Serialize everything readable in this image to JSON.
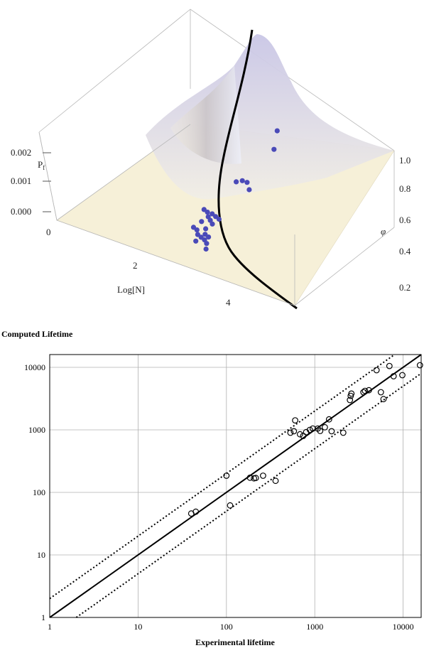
{
  "chart_data": [
    {
      "type": "surface3d",
      "zlabel": "P_f",
      "xlabel": "Log[N]",
      "ylabel": "φ",
      "z_ticks": [
        "0.002",
        "0.001",
        "0.000"
      ],
      "x_ticks": [
        "0",
        "2",
        "4"
      ],
      "y_ticks": [
        "0.2",
        "0.4",
        "0.6",
        "0.8",
        "1.0"
      ],
      "surface_color": "#f6f0d8",
      "curve_color": "#000000",
      "point_color": "#4a4ab8",
      "points": [
        {
          "logN": 3.3,
          "phi": 0.98
        },
        {
          "logN": 3.4,
          "phi": 0.92
        },
        {
          "logN": 3.1,
          "phi": 0.79
        },
        {
          "logN": 3.2,
          "phi": 0.79
        },
        {
          "logN": 3.0,
          "phi": 0.78
        },
        {
          "logN": 3.3,
          "phi": 0.77
        },
        {
          "logN": 2.8,
          "phi": 0.61
        },
        {
          "logN": 2.9,
          "phi": 0.6
        },
        {
          "logN": 3.0,
          "phi": 0.6
        },
        {
          "logN": 3.1,
          "phi": 0.59
        },
        {
          "logN": 3.2,
          "phi": 0.58
        },
        {
          "logN": 3.0,
          "phi": 0.57
        },
        {
          "logN": 3.1,
          "phi": 0.55
        },
        {
          "logN": 3.2,
          "phi": 0.53
        },
        {
          "logN": 3.0,
          "phi": 0.52
        },
        {
          "logN": 3.2,
          "phi": 0.48
        },
        {
          "logN": 3.0,
          "phi": 0.46
        },
        {
          "logN": 3.1,
          "phi": 0.45
        },
        {
          "logN": 3.3,
          "phi": 0.44
        },
        {
          "logN": 3.4,
          "phi": 0.43
        },
        {
          "logN": 3.2,
          "phi": 0.42
        },
        {
          "logN": 3.3,
          "phi": 0.41
        },
        {
          "logN": 3.4,
          "phi": 0.4
        },
        {
          "logN": 3.5,
          "phi": 0.38
        },
        {
          "logN": 3.3,
          "phi": 0.37
        },
        {
          "logN": 3.6,
          "phi": 0.34
        }
      ]
    },
    {
      "type": "scatter",
      "title": "Computed Lifetime",
      "xlabel": "Experimental lifetime",
      "ylabel": "",
      "xscale": "log",
      "yscale": "log",
      "xlim": [
        1,
        16000
      ],
      "ylim": [
        1,
        16000
      ],
      "x_ticks": [
        "1",
        "10",
        "100",
        "1000",
        "10000"
      ],
      "y_ticks": [
        "1",
        "10",
        "100",
        "1000",
        "10000"
      ],
      "grid": true,
      "reference_lines": [
        {
          "style": "solid",
          "relation": "y = x"
        },
        {
          "style": "dotted",
          "relation": "y = 2x"
        },
        {
          "style": "dotted",
          "relation": "y = x/2"
        }
      ],
      "points": [
        {
          "x": 40,
          "y": 46
        },
        {
          "x": 45,
          "y": 49
        },
        {
          "x": 100,
          "y": 185
        },
        {
          "x": 110,
          "y": 62
        },
        {
          "x": 185,
          "y": 172
        },
        {
          "x": 205,
          "y": 168
        },
        {
          "x": 215,
          "y": 170
        },
        {
          "x": 260,
          "y": 185
        },
        {
          "x": 360,
          "y": 153
        },
        {
          "x": 530,
          "y": 900
        },
        {
          "x": 580,
          "y": 950
        },
        {
          "x": 600,
          "y": 1420
        },
        {
          "x": 680,
          "y": 850
        },
        {
          "x": 740,
          "y": 800
        },
        {
          "x": 800,
          "y": 920
        },
        {
          "x": 880,
          "y": 1000
        },
        {
          "x": 950,
          "y": 1050
        },
        {
          "x": 1080,
          "y": 1050
        },
        {
          "x": 1150,
          "y": 960
        },
        {
          "x": 1300,
          "y": 1100
        },
        {
          "x": 1450,
          "y": 1470
        },
        {
          "x": 1550,
          "y": 950
        },
        {
          "x": 2100,
          "y": 900
        },
        {
          "x": 2500,
          "y": 3000
        },
        {
          "x": 2550,
          "y": 3500
        },
        {
          "x": 2600,
          "y": 3800
        },
        {
          "x": 3550,
          "y": 4000
        },
        {
          "x": 3700,
          "y": 4200
        },
        {
          "x": 4100,
          "y": 4300
        },
        {
          "x": 5000,
          "y": 9000
        },
        {
          "x": 5600,
          "y": 4000
        },
        {
          "x": 6000,
          "y": 3100
        },
        {
          "x": 7000,
          "y": 10500
        },
        {
          "x": 7800,
          "y": 7200
        },
        {
          "x": 9800,
          "y": 7500
        },
        {
          "x": 15500,
          "y": 10800
        }
      ]
    }
  ]
}
